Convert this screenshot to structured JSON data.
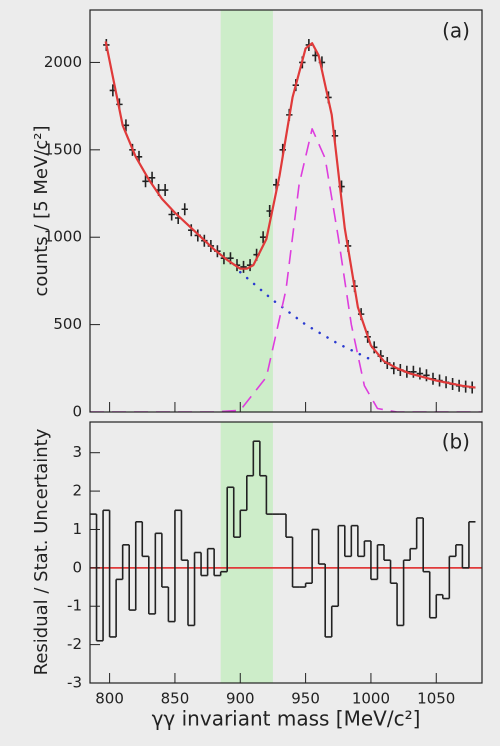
{
  "chart_data": [
    {
      "type": "scatter",
      "panel_label": "(a)",
      "y_label": "counts / [5 MeV/c²]",
      "xlim": [
        785,
        1085
      ],
      "ylim": [
        0,
        2300
      ],
      "yticks": [
        0,
        500,
        1000,
        1500,
        2000
      ],
      "highlight": [
        885,
        925
      ],
      "highlight_color": "#c6eec0",
      "series": [
        {
          "style": "points",
          "color": "#222222",
          "x": [
            797.5,
            802.5,
            807.5,
            812.5,
            817.5,
            822.5,
            827.5,
            832.5,
            837.5,
            842.5,
            847.5,
            852.5,
            857.5,
            862.5,
            867.5,
            872.5,
            877.5,
            882.5,
            887.5,
            892.5,
            897.5,
            902.5,
            907.5,
            912.5,
            917.5,
            922.5,
            927.5,
            932.5,
            937.5,
            942.5,
            947.5,
            952.5,
            957.5,
            962.5,
            967.5,
            972.5,
            977.5,
            982.5,
            987.5,
            992.5,
            997.5,
            1002.5,
            1007.5,
            1012.5,
            1017.5,
            1022.5,
            1027.5,
            1032.5,
            1037.5,
            1042.5,
            1047.5,
            1052.5,
            1057.5,
            1062.5,
            1067.5,
            1072.5,
            1077.5
          ],
          "values": [
            2100,
            1840,
            1760,
            1640,
            1500,
            1460,
            1320,
            1340,
            1270,
            1270,
            1130,
            1110,
            1160,
            1040,
            1010,
            980,
            950,
            920,
            880,
            880,
            840,
            830,
            840,
            900,
            1000,
            1150,
            1300,
            1500,
            1700,
            1870,
            2000,
            2100,
            2040,
            2000,
            1800,
            1580,
            1290,
            950,
            720,
            560,
            430,
            370,
            320,
            280,
            250,
            240,
            230,
            230,
            220,
            210,
            190,
            180,
            170,
            160,
            150,
            145,
            140
          ]
        },
        {
          "style": "solid",
          "color": "#e03a3a",
          "x": [
            797,
            810,
            820,
            830,
            840,
            850,
            860,
            870,
            880,
            890,
            900,
            905,
            910,
            920,
            930,
            940,
            950,
            955,
            960,
            970,
            980,
            990,
            1000,
            1010,
            1020,
            1030,
            1040,
            1050,
            1060,
            1070,
            1080
          ],
          "values": [
            2120,
            1640,
            1460,
            1330,
            1220,
            1140,
            1070,
            1000,
            930,
            870,
            820,
            820,
            840,
            990,
            1350,
            1800,
            2080,
            2110,
            2040,
            1700,
            1050,
            600,
            380,
            290,
            250,
            220,
            200,
            180,
            165,
            150,
            140
          ]
        },
        {
          "style": "dotted",
          "color": "#2a3ad0",
          "x": [
            900,
            925,
            950,
            975,
            1000
          ],
          "values": [
            800,
            640,
            500,
            390,
            300
          ]
        },
        {
          "style": "dashed",
          "color": "#dd3ddd",
          "x": [
            785,
            880,
            900,
            920,
            935,
            945,
            955,
            965,
            975,
            985,
            995,
            1005,
            1020,
            1085
          ],
          "values": [
            0,
            0,
            10,
            200,
            700,
            1300,
            1620,
            1450,
            1000,
            500,
            150,
            20,
            0,
            0
          ]
        }
      ]
    },
    {
      "type": "histogram",
      "panel_label": "(b)",
      "y_label": "Residual / Stat. Uncertainty",
      "x_label": "γγ invariant mass [MeV/c²]",
      "xlim": [
        785,
        1085
      ],
      "ylim": [
        -3,
        3.8
      ],
      "xticks": [
        800,
        850,
        900,
        950,
        1000,
        1050
      ],
      "yticks": [
        -3,
        -2,
        -1,
        0,
        1,
        2,
        3
      ],
      "highlight": [
        885,
        925
      ],
      "highlight_color": "#c6eec0",
      "color": "#222222",
      "reference_line": 0,
      "reference_color": "#e03a3a",
      "bins": [
        785,
        790,
        795,
        800,
        805,
        810,
        815,
        820,
        825,
        830,
        835,
        840,
        845,
        850,
        855,
        860,
        865,
        870,
        875,
        880,
        885,
        890,
        895,
        900,
        905,
        910,
        915,
        920,
        925,
        930,
        935,
        940,
        945,
        950,
        955,
        960,
        965,
        970,
        975,
        980,
        985,
        990,
        995,
        1000,
        1005,
        1010,
        1015,
        1020,
        1025,
        1030,
        1035,
        1040,
        1045,
        1050,
        1055,
        1060,
        1065,
        1070,
        1075,
        1080
      ],
      "values": [
        1.4,
        -1.9,
        1.5,
        -1.8,
        -0.3,
        0.6,
        -1.1,
        1.2,
        0.3,
        -1.2,
        0.9,
        -0.5,
        -1.4,
        1.5,
        0.2,
        -1.5,
        0.4,
        -0.2,
        0.5,
        -0.2,
        -0.1,
        2.1,
        0.8,
        1.5,
        2.4,
        3.3,
        2.4,
        1.4,
        1.4,
        1.4,
        0.8,
        -0.5,
        -0.5,
        -0.4,
        1.0,
        0.1,
        -1.8,
        -1.0,
        1.1,
        0.3,
        1.1,
        0.3,
        0.7,
        -0.3,
        0.6,
        0.2,
        -0.4,
        -1.5,
        0.2,
        0.5,
        1.3,
        -0.1,
        -1.3,
        -0.7,
        -0.8,
        0.3,
        0.6,
        0.0,
        1.2
      ]
    }
  ]
}
